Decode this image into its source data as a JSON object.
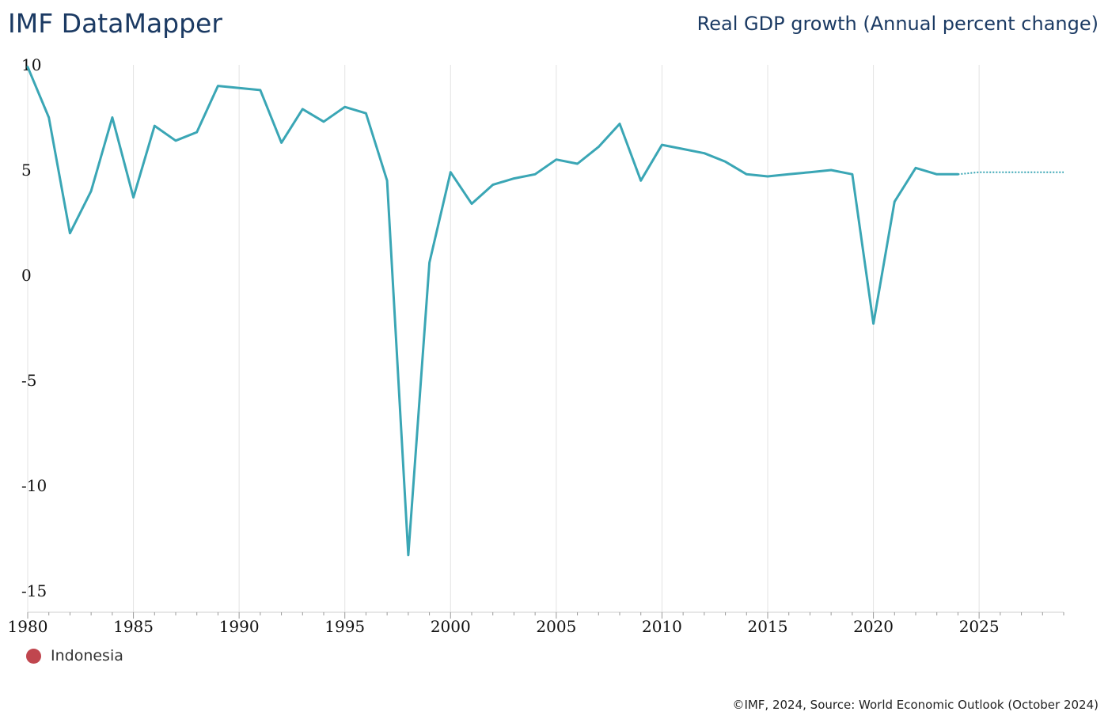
{
  "header": {
    "brand": "IMF DataMapper",
    "title": "Real GDP growth (Annual percent change)"
  },
  "footer": {
    "source": "©IMF, 2024, Source: World Economic Outlook (October 2024)"
  },
  "colors": {
    "line": "#3aa6b5",
    "legend_marker": "#c0464e",
    "grid": "#e3e3e3",
    "title": "#1b3a63"
  },
  "chart_data": {
    "type": "line",
    "title": "Real GDP growth (Annual percent change)",
    "xlabel": "",
    "ylabel": "",
    "xlim": [
      1980,
      2029
    ],
    "ylim": [
      -15,
      10
    ],
    "y_ticks": [
      "10",
      "5",
      "0",
      "-5",
      "-10",
      "-15"
    ],
    "x_ticks": [
      "1980",
      "1985",
      "1990",
      "1995",
      "2000",
      "2005",
      "2010",
      "2015",
      "2020",
      "2025"
    ],
    "legend": [
      "Indonesia"
    ],
    "series": [
      {
        "name": "Indonesia",
        "x": [
          1980,
          1981,
          1982,
          1983,
          1984,
          1985,
          1986,
          1987,
          1988,
          1989,
          1990,
          1991,
          1992,
          1993,
          1994,
          1995,
          1996,
          1997,
          1998,
          1999,
          2000,
          2001,
          2002,
          2003,
          2004,
          2005,
          2006,
          2007,
          2008,
          2009,
          2010,
          2011,
          2012,
          2013,
          2014,
          2015,
          2016,
          2017,
          2018,
          2019,
          2020,
          2021,
          2022,
          2023,
          2024
        ],
        "values": [
          9.9,
          7.5,
          2.0,
          4.0,
          7.5,
          3.7,
          7.1,
          6.4,
          6.8,
          9.0,
          8.9,
          8.8,
          6.3,
          7.9,
          7.3,
          8.0,
          7.7,
          4.5,
          -13.3,
          0.6,
          4.9,
          3.4,
          4.3,
          4.6,
          4.8,
          5.5,
          5.3,
          6.1,
          7.2,
          4.5,
          6.2,
          6.0,
          5.8,
          5.4,
          4.8,
          4.7,
          4.8,
          4.9,
          5.0,
          4.8,
          -2.3,
          3.5,
          5.1,
          4.8,
          4.8
        ]
      },
      {
        "name": "Indonesia (projection)",
        "style": "dotted",
        "x": [
          2024,
          2025,
          2026,
          2027,
          2028,
          2029
        ],
        "values": [
          4.8,
          4.9,
          4.9,
          4.9,
          4.9,
          4.9
        ]
      }
    ]
  }
}
